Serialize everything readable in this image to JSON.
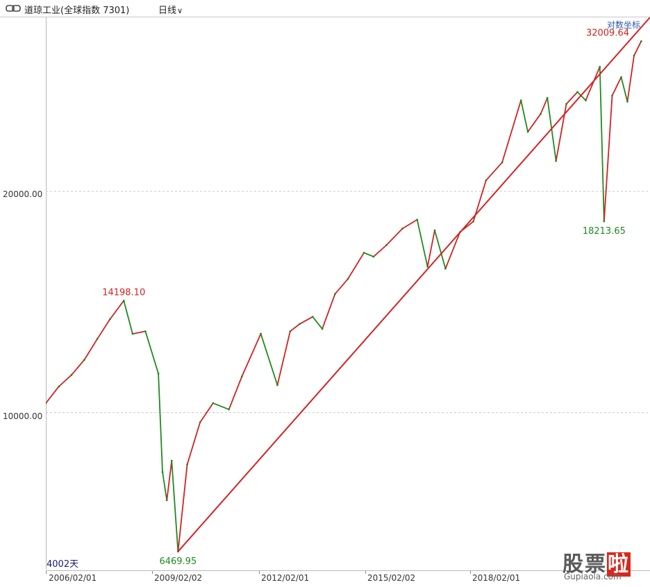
{
  "header": {
    "name": "道琼工业(全球指数 7301)",
    "period": "日线"
  },
  "toolbar": {
    "scale_toggle": "对数坐标"
  },
  "footer": {
    "days": "4002天"
  },
  "colors": {
    "up": "#d42020",
    "down": "#1e8a1e",
    "trend": "#d42020",
    "grid": "#c8c8c8"
  },
  "icons": [
    "link-icon",
    "chevron-down-icon"
  ],
  "watermark": {
    "text_cn": "股票啦",
    "text_en": "Gupiaola.com"
  },
  "chart_data": {
    "type": "line",
    "scale": "log",
    "grid": true,
    "y_tick_labels": [
      "20000.00",
      "10000.00"
    ],
    "x_tick_labels": [
      "2006/02/01",
      "2009/02/02",
      "2012/02/01",
      "2015/02/02",
      "2018/02/01"
    ],
    "annotations": [
      {
        "label": "14198.10",
        "x": "2007/10/09",
        "y": 14198.1,
        "color": "up"
      },
      {
        "label": "6469.95",
        "x": "2009/03/06",
        "y": 6469.95,
        "color": "down"
      },
      {
        "label": "18213.65",
        "x": "2020/03/23",
        "y": 18213.65,
        "color": "down"
      },
      {
        "label": "32009.64",
        "x": "2021/03/10",
        "y": 32009.64,
        "color": "up"
      }
    ],
    "series": [
      {
        "x": [
          "2005/10/01",
          "2006/02/01",
          "2006/06/01",
          "2006/10/01",
          "2007/02/01",
          "2007/06/01",
          "2007/10/09",
          "2008/01/01",
          "2008/05/01",
          "2008/09/01",
          "2008/10/10",
          "2008/11/20",
          "2009/01/05",
          "2009/03/06",
          "2009/06/01",
          "2009/10/01",
          "2010/02/01",
          "2010/07/01",
          "2010/11/01",
          "2011/04/29",
          "2011/10/03",
          "2012/02/01",
          "2012/05/01",
          "2012/09/01",
          "2012/12/01",
          "2013/04/01",
          "2013/08/01",
          "2013/12/31",
          "2014/04/01",
          "2014/08/01",
          "2014/12/31",
          "2015/05/19",
          "2015/08/25",
          "2015/11/01",
          "2016/02/11",
          "2016/06/27",
          "2016/11/01",
          "2017/03/01",
          "2017/08/01",
          "2018/01/26",
          "2018/04/01",
          "2018/08/01",
          "2018/10/03",
          "2018/12/24",
          "2019/04/01",
          "2019/07/15",
          "2019/10/01",
          "2020/02/12",
          "2020/03/23",
          "2020/06/08",
          "2020/09/01",
          "2020/10/30",
          "2021/01/01",
          "2021/03/10"
        ],
        "values": [
          10300,
          10850,
          11250,
          11800,
          12600,
          13400,
          14198.1,
          12800,
          12900,
          11300,
          8300,
          7600,
          8600,
          6469.95,
          8500,
          9700,
          10300,
          10100,
          11200,
          12800,
          10900,
          12900,
          13200,
          13500,
          13000,
          14500,
          15200,
          16500,
          16300,
          16900,
          17800,
          18300,
          15800,
          17700,
          15700,
          17600,
          18200,
          20700,
          21900,
          26600,
          24100,
          25500,
          26800,
          22000,
          26300,
          27300,
          26600,
          29550,
          18213.65,
          27000,
          28600,
          26500,
          30600,
          32009.64
        ]
      }
    ],
    "trendline": {
      "x": [
        "2009/03/06",
        "2021/06/01"
      ],
      "values": [
        6469.95,
        34500
      ]
    },
    "axis": {
      "xlim": [
        "2005/10/01",
        "2021/06/01"
      ],
      "ylim": [
        6100,
        34500
      ]
    }
  }
}
